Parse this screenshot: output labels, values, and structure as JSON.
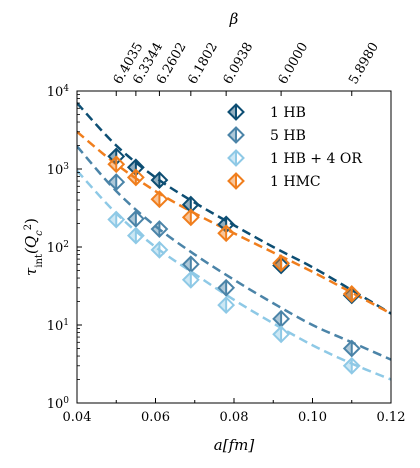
{
  "chart_data": {
    "type": "scatter",
    "xscale": "linear",
    "yscale": "log",
    "xlim": [
      0.04,
      0.12
    ],
    "ylim": [
      1,
      10000
    ],
    "xlabel": "a[fm]",
    "ylabel": "τ_int(Q_c^2)",
    "ylabel_main": "τ",
    "ylabel_sub": "int",
    "ylabel_open": "(Q",
    "ylabel_sub2": "c",
    "ylabel_sup": "2",
    "ylabel_close": ")",
    "top_axis_label": "β",
    "x_ticks": [
      0.04,
      0.06,
      0.08,
      0.1,
      0.12
    ],
    "x_tick_labels": [
      "0.04",
      "0.06",
      "0.08",
      "0.10",
      "0.12"
    ],
    "y_ticks": [
      1,
      10,
      100,
      1000,
      10000
    ],
    "y_tick_base": "10",
    "y_tick_exps": [
      "0",
      "1",
      "2",
      "3",
      "4"
    ],
    "top_ticks": [
      {
        "a": 0.05,
        "label": "6.4035"
      },
      {
        "a": 0.055,
        "label": "6.3344"
      },
      {
        "a": 0.061,
        "label": "6.2602"
      },
      {
        "a": 0.069,
        "label": "6.1802"
      },
      {
        "a": 0.078,
        "label": "6.0938"
      },
      {
        "a": 0.092,
        "label": "6.0000"
      },
      {
        "a": 0.11,
        "label": "5.8980"
      }
    ],
    "legend_position": "top-right",
    "series": [
      {
        "name": "1 HB",
        "color": "#0d4e73",
        "points": [
          [
            0.05,
            1450
          ],
          [
            0.055,
            1050
          ],
          [
            0.061,
            720
          ],
          [
            0.069,
            350
          ],
          [
            0.078,
            195
          ],
          [
            0.092,
            58
          ],
          [
            0.11,
            24
          ]
        ],
        "fit": [
          [
            0.04,
            7000
          ],
          [
            0.05,
            2000
          ],
          [
            0.06,
            780
          ],
          [
            0.07,
            370
          ],
          [
            0.08,
            190
          ],
          [
            0.09,
            100
          ],
          [
            0.1,
            55
          ],
          [
            0.11,
            28
          ],
          [
            0.12,
            14
          ]
        ]
      },
      {
        "name": "5 HB",
        "color": "#4b84a8",
        "points": [
          [
            0.05,
            680
          ],
          [
            0.055,
            230
          ],
          [
            0.061,
            170
          ],
          [
            0.069,
            60
          ],
          [
            0.078,
            30
          ],
          [
            0.092,
            12
          ],
          [
            0.11,
            5
          ]
        ],
        "fit": [
          [
            0.04,
            1950
          ],
          [
            0.05,
            520
          ],
          [
            0.06,
            185
          ],
          [
            0.07,
            80
          ],
          [
            0.08,
            38
          ],
          [
            0.09,
            19
          ],
          [
            0.1,
            10
          ],
          [
            0.11,
            6
          ],
          [
            0.12,
            3.6
          ]
        ]
      },
      {
        "name": "1 HB + 4 OR",
        "color": "#8ec9e6",
        "points": [
          [
            0.05,
            225
          ],
          [
            0.055,
            140
          ],
          [
            0.061,
            92
          ],
          [
            0.069,
            38
          ],
          [
            0.078,
            18
          ],
          [
            0.092,
            7.6
          ],
          [
            0.11,
            3
          ]
        ],
        "fit": [
          [
            0.04,
            950
          ],
          [
            0.05,
            270
          ],
          [
            0.06,
            100
          ],
          [
            0.07,
            45
          ],
          [
            0.08,
            21
          ],
          [
            0.09,
            10.5
          ],
          [
            0.1,
            5.5
          ],
          [
            0.11,
            3.2
          ],
          [
            0.12,
            2
          ]
        ]
      },
      {
        "name": "1 HMC",
        "color": "#f07e1d",
        "points": [
          [
            0.05,
            1150
          ],
          [
            0.055,
            780
          ],
          [
            0.061,
            410
          ],
          [
            0.069,
            240
          ],
          [
            0.078,
            150
          ],
          [
            0.092,
            62
          ],
          [
            0.11,
            25
          ]
        ],
        "fit": [
          [
            0.04,
            3000
          ],
          [
            0.05,
            1150
          ],
          [
            0.06,
            520
          ],
          [
            0.07,
            270
          ],
          [
            0.08,
            150
          ],
          [
            0.09,
            85
          ],
          [
            0.1,
            48
          ],
          [
            0.11,
            26
          ],
          [
            0.12,
            14
          ]
        ]
      }
    ]
  }
}
